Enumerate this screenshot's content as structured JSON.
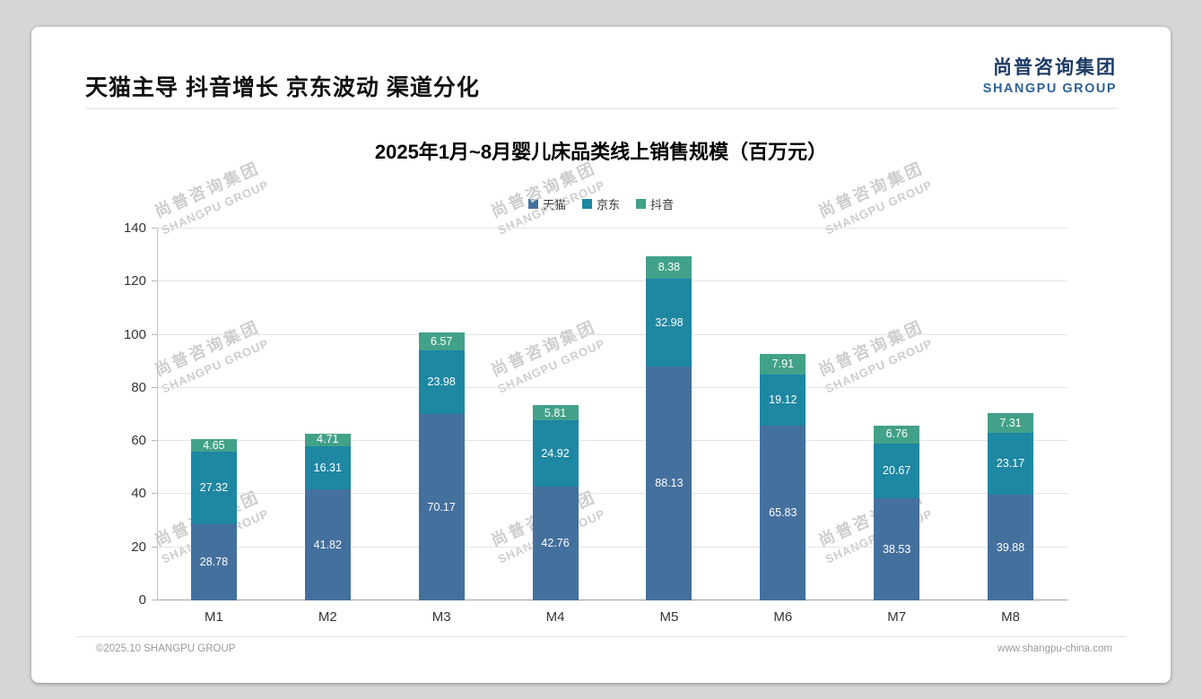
{
  "page": {
    "title": "天猫主导 抖音增长 京东波动 渠道分化",
    "logo": {
      "cn": "尚普咨询集团",
      "en": "SHANGPU GROUP"
    },
    "watermark": {
      "line1": "尚普咨询集团",
      "line2": "SHANGPU GROUP"
    },
    "footer": {
      "left": "©2025.10 SHANGPU GROUP",
      "right": "www.shangpu-china.com"
    },
    "colors": {
      "background": "#d6d6d6",
      "logo_cn": "#1d3a66",
      "logo_en": "#2f6298"
    }
  },
  "chart_data": {
    "type": "bar",
    "stacked": true,
    "title": "2025年1月~8月婴儿床品类线上销售规模（百万元）",
    "categories": [
      "M1",
      "M2",
      "M3",
      "M4",
      "M5",
      "M6",
      "M7",
      "M8"
    ],
    "series": [
      {
        "name": "天猫",
        "color": "#44709d",
        "values": [
          28.78,
          41.82,
          70.17,
          42.76,
          88.13,
          65.83,
          38.53,
          39.88
        ]
      },
      {
        "name": "京东",
        "color": "#1e87a2",
        "values": [
          27.32,
          16.31,
          23.98,
          24.92,
          32.98,
          19.12,
          20.67,
          23.17
        ]
      },
      {
        "name": "抖音",
        "color": "#42a189",
        "values": [
          4.65,
          4.71,
          6.57,
          5.81,
          8.38,
          7.91,
          6.76,
          7.31
        ]
      }
    ],
    "xlabel": "",
    "ylabel": "",
    "ylim": [
      0,
      140
    ],
    "yticks": [
      0,
      20,
      40,
      60,
      80,
      100,
      120,
      140
    ],
    "grid": true,
    "legend_position": "top",
    "value_labels": true
  }
}
